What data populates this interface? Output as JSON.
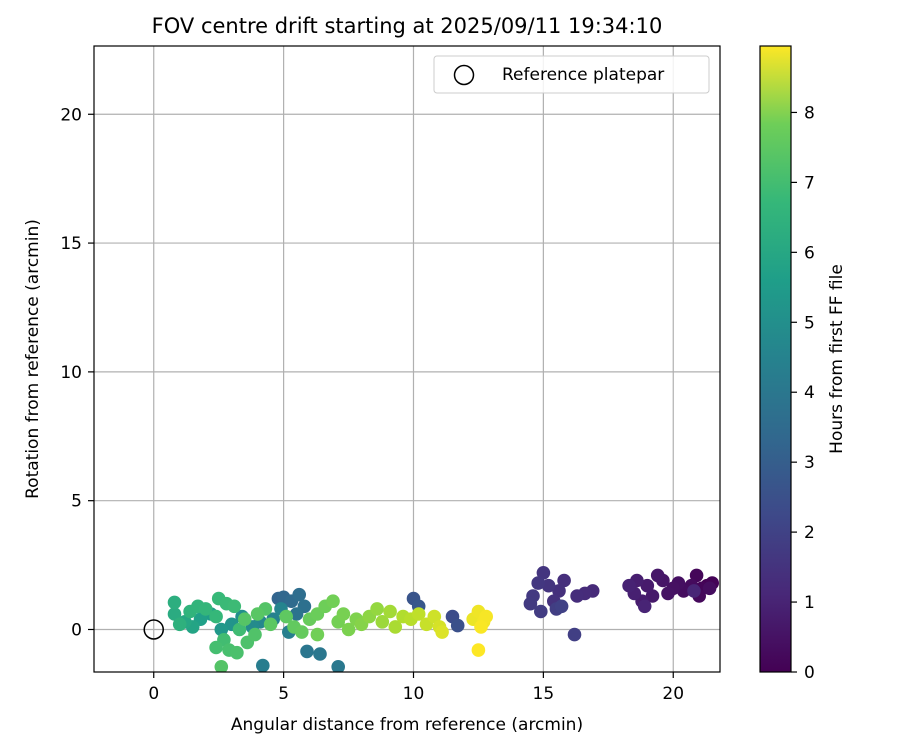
{
  "chart_data": {
    "type": "scatter",
    "title": "FOV centre drift starting at 2025/09/11 19:34:10",
    "xlabel": "Angular distance from reference (arcmin)",
    "ylabel": "Rotation from reference (arcmin)",
    "xlim": [
      -2.3,
      21.8
    ],
    "ylim": [
      -1.65,
      22.65
    ],
    "xticks": [
      0,
      5,
      10,
      15,
      20
    ],
    "yticks": [
      0,
      5,
      10,
      15,
      20
    ],
    "grid": true,
    "legend": {
      "position": "top-right",
      "entries": [
        {
          "label": "Reference platepar",
          "marker": "open-circle"
        }
      ]
    },
    "reference_point": {
      "x": 0,
      "y": 0
    },
    "colorbar": {
      "label": "Hours from first FF file",
      "colormap": "viridis",
      "range": [
        0,
        8.95
      ],
      "ticks": [
        0,
        1,
        2,
        3,
        4,
        5,
        6,
        7,
        8
      ]
    },
    "points": [
      {
        "x": 21.3,
        "y": 1.7,
        "c": 0.0
      },
      {
        "x": 21.5,
        "y": 1.8,
        "c": 0.05
      },
      {
        "x": 21.1,
        "y": 1.6,
        "c": 0.1
      },
      {
        "x": 20.9,
        "y": 2.1,
        "c": 0.15
      },
      {
        "x": 21.0,
        "y": 1.3,
        "c": 0.2
      },
      {
        "x": 20.7,
        "y": 1.7,
        "c": 0.25
      },
      {
        "x": 20.4,
        "y": 1.5,
        "c": 0.3
      },
      {
        "x": 20.2,
        "y": 1.8,
        "c": 0.35
      },
      {
        "x": 20.0,
        "y": 1.6,
        "c": 0.4
      },
      {
        "x": 19.8,
        "y": 1.4,
        "c": 0.45
      },
      {
        "x": 19.6,
        "y": 1.9,
        "c": 0.5
      },
      {
        "x": 19.4,
        "y": 2.1,
        "c": 0.55
      },
      {
        "x": 19.2,
        "y": 1.3,
        "c": 0.6
      },
      {
        "x": 19.0,
        "y": 1.7,
        "c": 0.65
      },
      {
        "x": 18.8,
        "y": 1.1,
        "c": 0.7
      },
      {
        "x": 18.6,
        "y": 1.9,
        "c": 0.75
      },
      {
        "x": 18.5,
        "y": 1.4,
        "c": 0.8
      },
      {
        "x": 18.3,
        "y": 1.7,
        "c": 0.85
      },
      {
        "x": 18.9,
        "y": 0.9,
        "c": 0.9
      },
      {
        "x": 20.8,
        "y": 1.5,
        "c": 0.95
      },
      {
        "x": 21.4,
        "y": 1.6,
        "c": 0.3
      },
      {
        "x": 16.9,
        "y": 1.5,
        "c": 1.05
      },
      {
        "x": 16.6,
        "y": 1.4,
        "c": 1.1
      },
      {
        "x": 16.3,
        "y": 1.3,
        "c": 1.15
      },
      {
        "x": 15.8,
        "y": 1.9,
        "c": 1.2
      },
      {
        "x": 15.6,
        "y": 1.5,
        "c": 1.25
      },
      {
        "x": 15.4,
        "y": 1.1,
        "c": 1.3
      },
      {
        "x": 15.2,
        "y": 1.7,
        "c": 1.35
      },
      {
        "x": 15.0,
        "y": 2.2,
        "c": 1.4
      },
      {
        "x": 14.8,
        "y": 1.8,
        "c": 1.45
      },
      {
        "x": 14.6,
        "y": 1.3,
        "c": 1.5
      },
      {
        "x": 14.5,
        "y": 1.0,
        "c": 1.55
      },
      {
        "x": 14.9,
        "y": 0.7,
        "c": 1.6
      },
      {
        "x": 15.5,
        "y": 0.8,
        "c": 1.65
      },
      {
        "x": 16.2,
        "y": -0.2,
        "c": 1.7
      },
      {
        "x": 15.7,
        "y": 0.9,
        "c": 1.75
      },
      {
        "x": 11.5,
        "y": 0.5,
        "c": 2.1
      },
      {
        "x": 11.7,
        "y": 0.15,
        "c": 2.2
      },
      {
        "x": 10.0,
        "y": 1.2,
        "c": 2.35
      },
      {
        "x": 10.2,
        "y": 0.9,
        "c": 2.45
      },
      {
        "x": 4.8,
        "y": 1.2,
        "c": 2.9
      },
      {
        "x": 5.0,
        "y": 1.25,
        "c": 3.0
      },
      {
        "x": 5.3,
        "y": 1.1,
        "c": 3.1
      },
      {
        "x": 5.6,
        "y": 1.35,
        "c": 3.2
      },
      {
        "x": 5.8,
        "y": 0.9,
        "c": 3.3
      },
      {
        "x": 5.5,
        "y": 0.6,
        "c": 3.4
      },
      {
        "x": 5.9,
        "y": -0.85,
        "c": 3.5
      },
      {
        "x": 6.4,
        "y": -0.95,
        "c": 3.55
      },
      {
        "x": 7.1,
        "y": -1.45,
        "c": 3.6
      },
      {
        "x": 4.2,
        "y": -1.4,
        "c": 3.8
      },
      {
        "x": 5.2,
        "y": -0.1,
        "c": 3.85
      },
      {
        "x": 4.6,
        "y": 0.4,
        "c": 3.95
      },
      {
        "x": 4.9,
        "y": 0.8,
        "c": 4.05
      },
      {
        "x": 4.1,
        "y": 0.3,
        "c": 4.15
      },
      {
        "x": 3.8,
        "y": 0.1,
        "c": 4.3
      },
      {
        "x": 3.4,
        "y": 0.5,
        "c": 4.45
      },
      {
        "x": 3.0,
        "y": 0.2,
        "c": 4.6
      },
      {
        "x": 2.6,
        "y": 0.0,
        "c": 4.75
      },
      {
        "x": 2.2,
        "y": 0.6,
        "c": 4.9
      },
      {
        "x": 1.8,
        "y": 0.4,
        "c": 5.05
      },
      {
        "x": 1.5,
        "y": 0.1,
        "c": 5.2
      },
      {
        "x": 1.2,
        "y": 0.3,
        "c": 5.35
      },
      {
        "x": 0.8,
        "y": 0.6,
        "c": 5.5
      },
      {
        "x": 0.8,
        "y": 1.05,
        "c": 5.6
      },
      {
        "x": 1.0,
        "y": 0.2,
        "c": 5.7
      },
      {
        "x": 1.4,
        "y": 0.7,
        "c": 5.8
      },
      {
        "x": 1.7,
        "y": 0.9,
        "c": 5.85
      },
      {
        "x": 2.0,
        "y": 0.8,
        "c": 5.9
      },
      {
        "x": 2.4,
        "y": 0.5,
        "c": 5.95
      },
      {
        "x": 2.5,
        "y": 1.2,
        "c": 6.0
      },
      {
        "x": 2.8,
        "y": 1.0,
        "c": 6.05
      },
      {
        "x": 3.1,
        "y": 0.9,
        "c": 6.1
      },
      {
        "x": 3.3,
        "y": 0.0,
        "c": 6.15
      },
      {
        "x": 2.7,
        "y": -0.4,
        "c": 6.2
      },
      {
        "x": 2.4,
        "y": -0.7,
        "c": 6.25
      },
      {
        "x": 2.9,
        "y": -0.8,
        "c": 6.3
      },
      {
        "x": 3.2,
        "y": -0.9,
        "c": 6.35
      },
      {
        "x": 3.6,
        "y": -0.5,
        "c": 6.4
      },
      {
        "x": 3.9,
        "y": -0.2,
        "c": 6.45
      },
      {
        "x": 2.6,
        "y": -1.45,
        "c": 6.5
      },
      {
        "x": 4.3,
        "y": 0.8,
        "c": 6.5
      },
      {
        "x": 3.5,
        "y": 0.4,
        "c": 6.55
      },
      {
        "x": 4.0,
        "y": 0.6,
        "c": 6.6
      },
      {
        "x": 4.5,
        "y": 0.2,
        "c": 6.65
      },
      {
        "x": 5.1,
        "y": 0.5,
        "c": 6.7
      },
      {
        "x": 5.4,
        "y": 0.1,
        "c": 6.75
      },
      {
        "x": 5.7,
        "y": -0.1,
        "c": 6.8
      },
      {
        "x": 6.0,
        "y": 0.4,
        "c": 6.85
      },
      {
        "x": 6.3,
        "y": 0.6,
        "c": 6.9
      },
      {
        "x": 6.6,
        "y": 0.9,
        "c": 6.95
      },
      {
        "x": 6.9,
        "y": 1.1,
        "c": 7.0
      },
      {
        "x": 6.3,
        "y": -0.2,
        "c": 7.0
      },
      {
        "x": 7.1,
        "y": 0.3,
        "c": 7.05
      },
      {
        "x": 7.3,
        "y": 0.6,
        "c": 7.1
      },
      {
        "x": 7.5,
        "y": 0.0,
        "c": 7.15
      },
      {
        "x": 7.8,
        "y": 0.4,
        "c": 7.2
      },
      {
        "x": 8.0,
        "y": 0.2,
        "c": 7.3
      },
      {
        "x": 8.3,
        "y": 0.5,
        "c": 7.4
      },
      {
        "x": 8.6,
        "y": 0.8,
        "c": 7.5
      },
      {
        "x": 8.8,
        "y": 0.3,
        "c": 7.6
      },
      {
        "x": 9.1,
        "y": 0.7,
        "c": 7.7
      },
      {
        "x": 9.3,
        "y": 0.1,
        "c": 7.8
      },
      {
        "x": 9.6,
        "y": 0.5,
        "c": 7.9
      },
      {
        "x": 9.9,
        "y": 0.4,
        "c": 8.0
      },
      {
        "x": 10.2,
        "y": 0.6,
        "c": 8.1
      },
      {
        "x": 10.5,
        "y": 0.2,
        "c": 8.2
      },
      {
        "x": 10.8,
        "y": 0.5,
        "c": 8.3
      },
      {
        "x": 11.0,
        "y": 0.1,
        "c": 8.4
      },
      {
        "x": 11.1,
        "y": -0.1,
        "c": 8.5
      },
      {
        "x": 12.3,
        "y": 0.4,
        "c": 8.7
      },
      {
        "x": 12.5,
        "y": 0.7,
        "c": 8.75
      },
      {
        "x": 12.7,
        "y": 0.3,
        "c": 8.8
      },
      {
        "x": 12.8,
        "y": 0.5,
        "c": 8.85
      },
      {
        "x": 12.6,
        "y": 0.1,
        "c": 8.9
      },
      {
        "x": 12.5,
        "y": -0.8,
        "c": 8.95
      }
    ]
  }
}
